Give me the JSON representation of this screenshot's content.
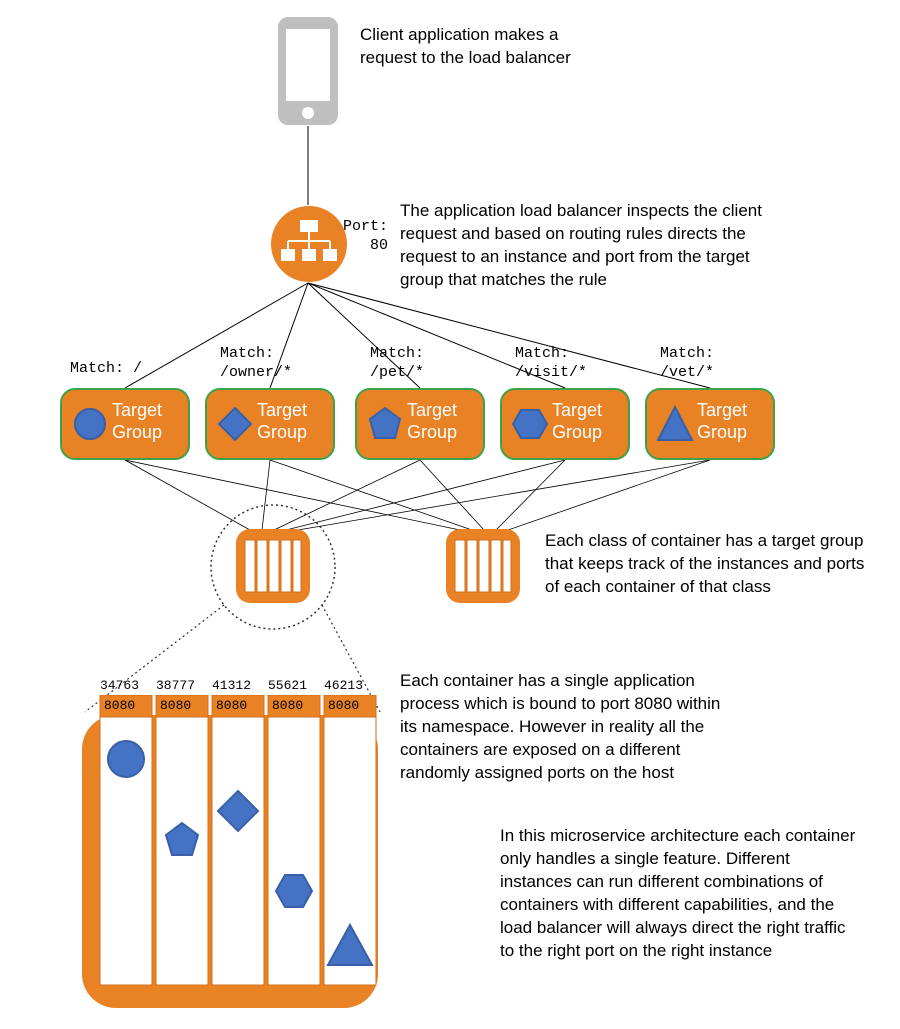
{
  "colors": {
    "orange": "#e98125",
    "orange_dark": "#d46f18",
    "green_border": "#3fa24a",
    "blue": "#4472c4",
    "blue_stroke": "#3a5fa7",
    "phone_grey": "#bfbfbf",
    "text": "#000000",
    "line": "#000000",
    "dotted": "#666666",
    "bg": "#ffffff",
    "white": "#ffffff"
  },
  "port_label": "Port: 80",
  "client_text": "Client application makes a request to the load balancer",
  "alb_text": "The application load balancer inspects the client request and based on routing rules directs the request to an instance and port from the target group that matches the rule",
  "target_group_label": "Target Group",
  "matches": [
    "Match: /",
    "Match: /owner/*",
    "Match: /pet/*",
    "Match: /visit/*",
    "Match: /vet/*"
  ],
  "tg_shapes": [
    "circle",
    "diamond",
    "pentagon",
    "hexagon",
    "triangle"
  ],
  "tg_desc": "Each class of container has a target group that keeps track of the instances and ports of each container of that class",
  "zoom": {
    "host_ports": [
      "34763",
      "38777",
      "41312",
      "55621",
      "46213"
    ],
    "inner_port": "8080",
    "shapes": [
      "circle",
      "pentagon",
      "diamond",
      "hexagon",
      "triangle"
    ]
  },
  "container_text": "Each container has a single application process which is bound to port 8080 within its namespace. However in reality all the containers are exposed on a different randomly assigned ports on the host",
  "micro_text": "In this microservice architecture each container only handles a single feature. Different instances can run different combinations of containers with different capabilities, and the load balancer will always direct the right traffic to the right port on the right instance"
}
